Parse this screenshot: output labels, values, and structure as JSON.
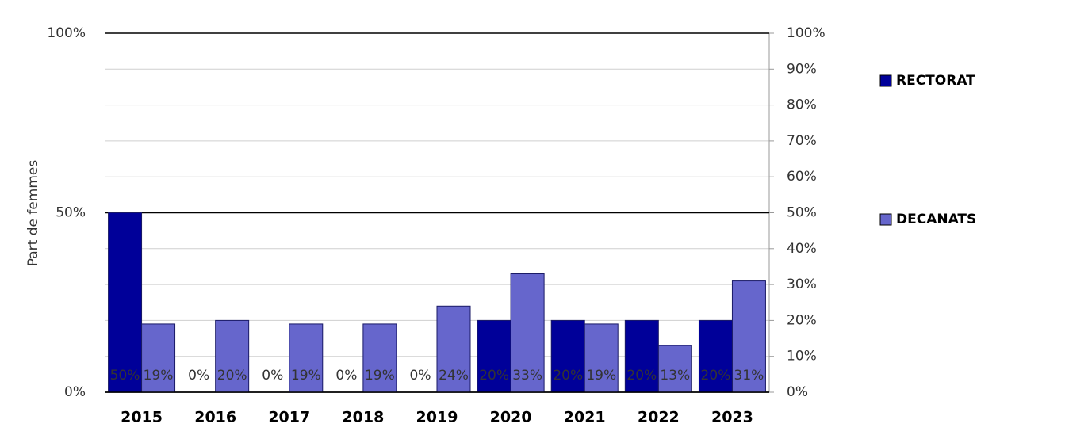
{
  "chart_data": {
    "type": "bar",
    "y_label": "Part de femmes",
    "categories": [
      "2015",
      "2016",
      "2017",
      "2018",
      "2019",
      "2020",
      "2021",
      "2022",
      "2023"
    ],
    "series": [
      {
        "name": "RECTORAT",
        "color": "#000099",
        "values": [
          50,
          0,
          0,
          0,
          0,
          20,
          20,
          20,
          20
        ],
        "value_labels": [
          "50%",
          "0%",
          "0%",
          "0%",
          "0%",
          "20%",
          "20%",
          "20%",
          "20%"
        ]
      },
      {
        "name": "DECANATS",
        "color": "#6666cc",
        "values": [
          19,
          20,
          19,
          19,
          24,
          33,
          19,
          13,
          31
        ],
        "value_labels": [
          "19%",
          "20%",
          "19%",
          "19%",
          "24%",
          "33%",
          "19%",
          "13%",
          "31%"
        ]
      }
    ],
    "ylim": [
      0,
      100
    ],
    "yticks": [
      {
        "value": 0,
        "label": "0%"
      },
      {
        "value": 50,
        "label": "50%"
      },
      {
        "value": 100,
        "label": "100%"
      }
    ],
    "y2lim": [
      0,
      100
    ],
    "y2ticks": [
      {
        "value": 0,
        "label": "0%"
      },
      {
        "value": 10,
        "label": "10%"
      },
      {
        "value": 20,
        "label": "20%"
      },
      {
        "value": 30,
        "label": "30%"
      },
      {
        "value": 40,
        "label": "40%"
      },
      {
        "value": 50,
        "label": "50%"
      },
      {
        "value": 60,
        "label": "60%"
      },
      {
        "value": 70,
        "label": "70%"
      },
      {
        "value": 80,
        "label": "80%"
      },
      {
        "value": 90,
        "label": "90%"
      },
      {
        "value": 100,
        "label": "100%"
      }
    ],
    "grid": true,
    "legend": "right"
  }
}
